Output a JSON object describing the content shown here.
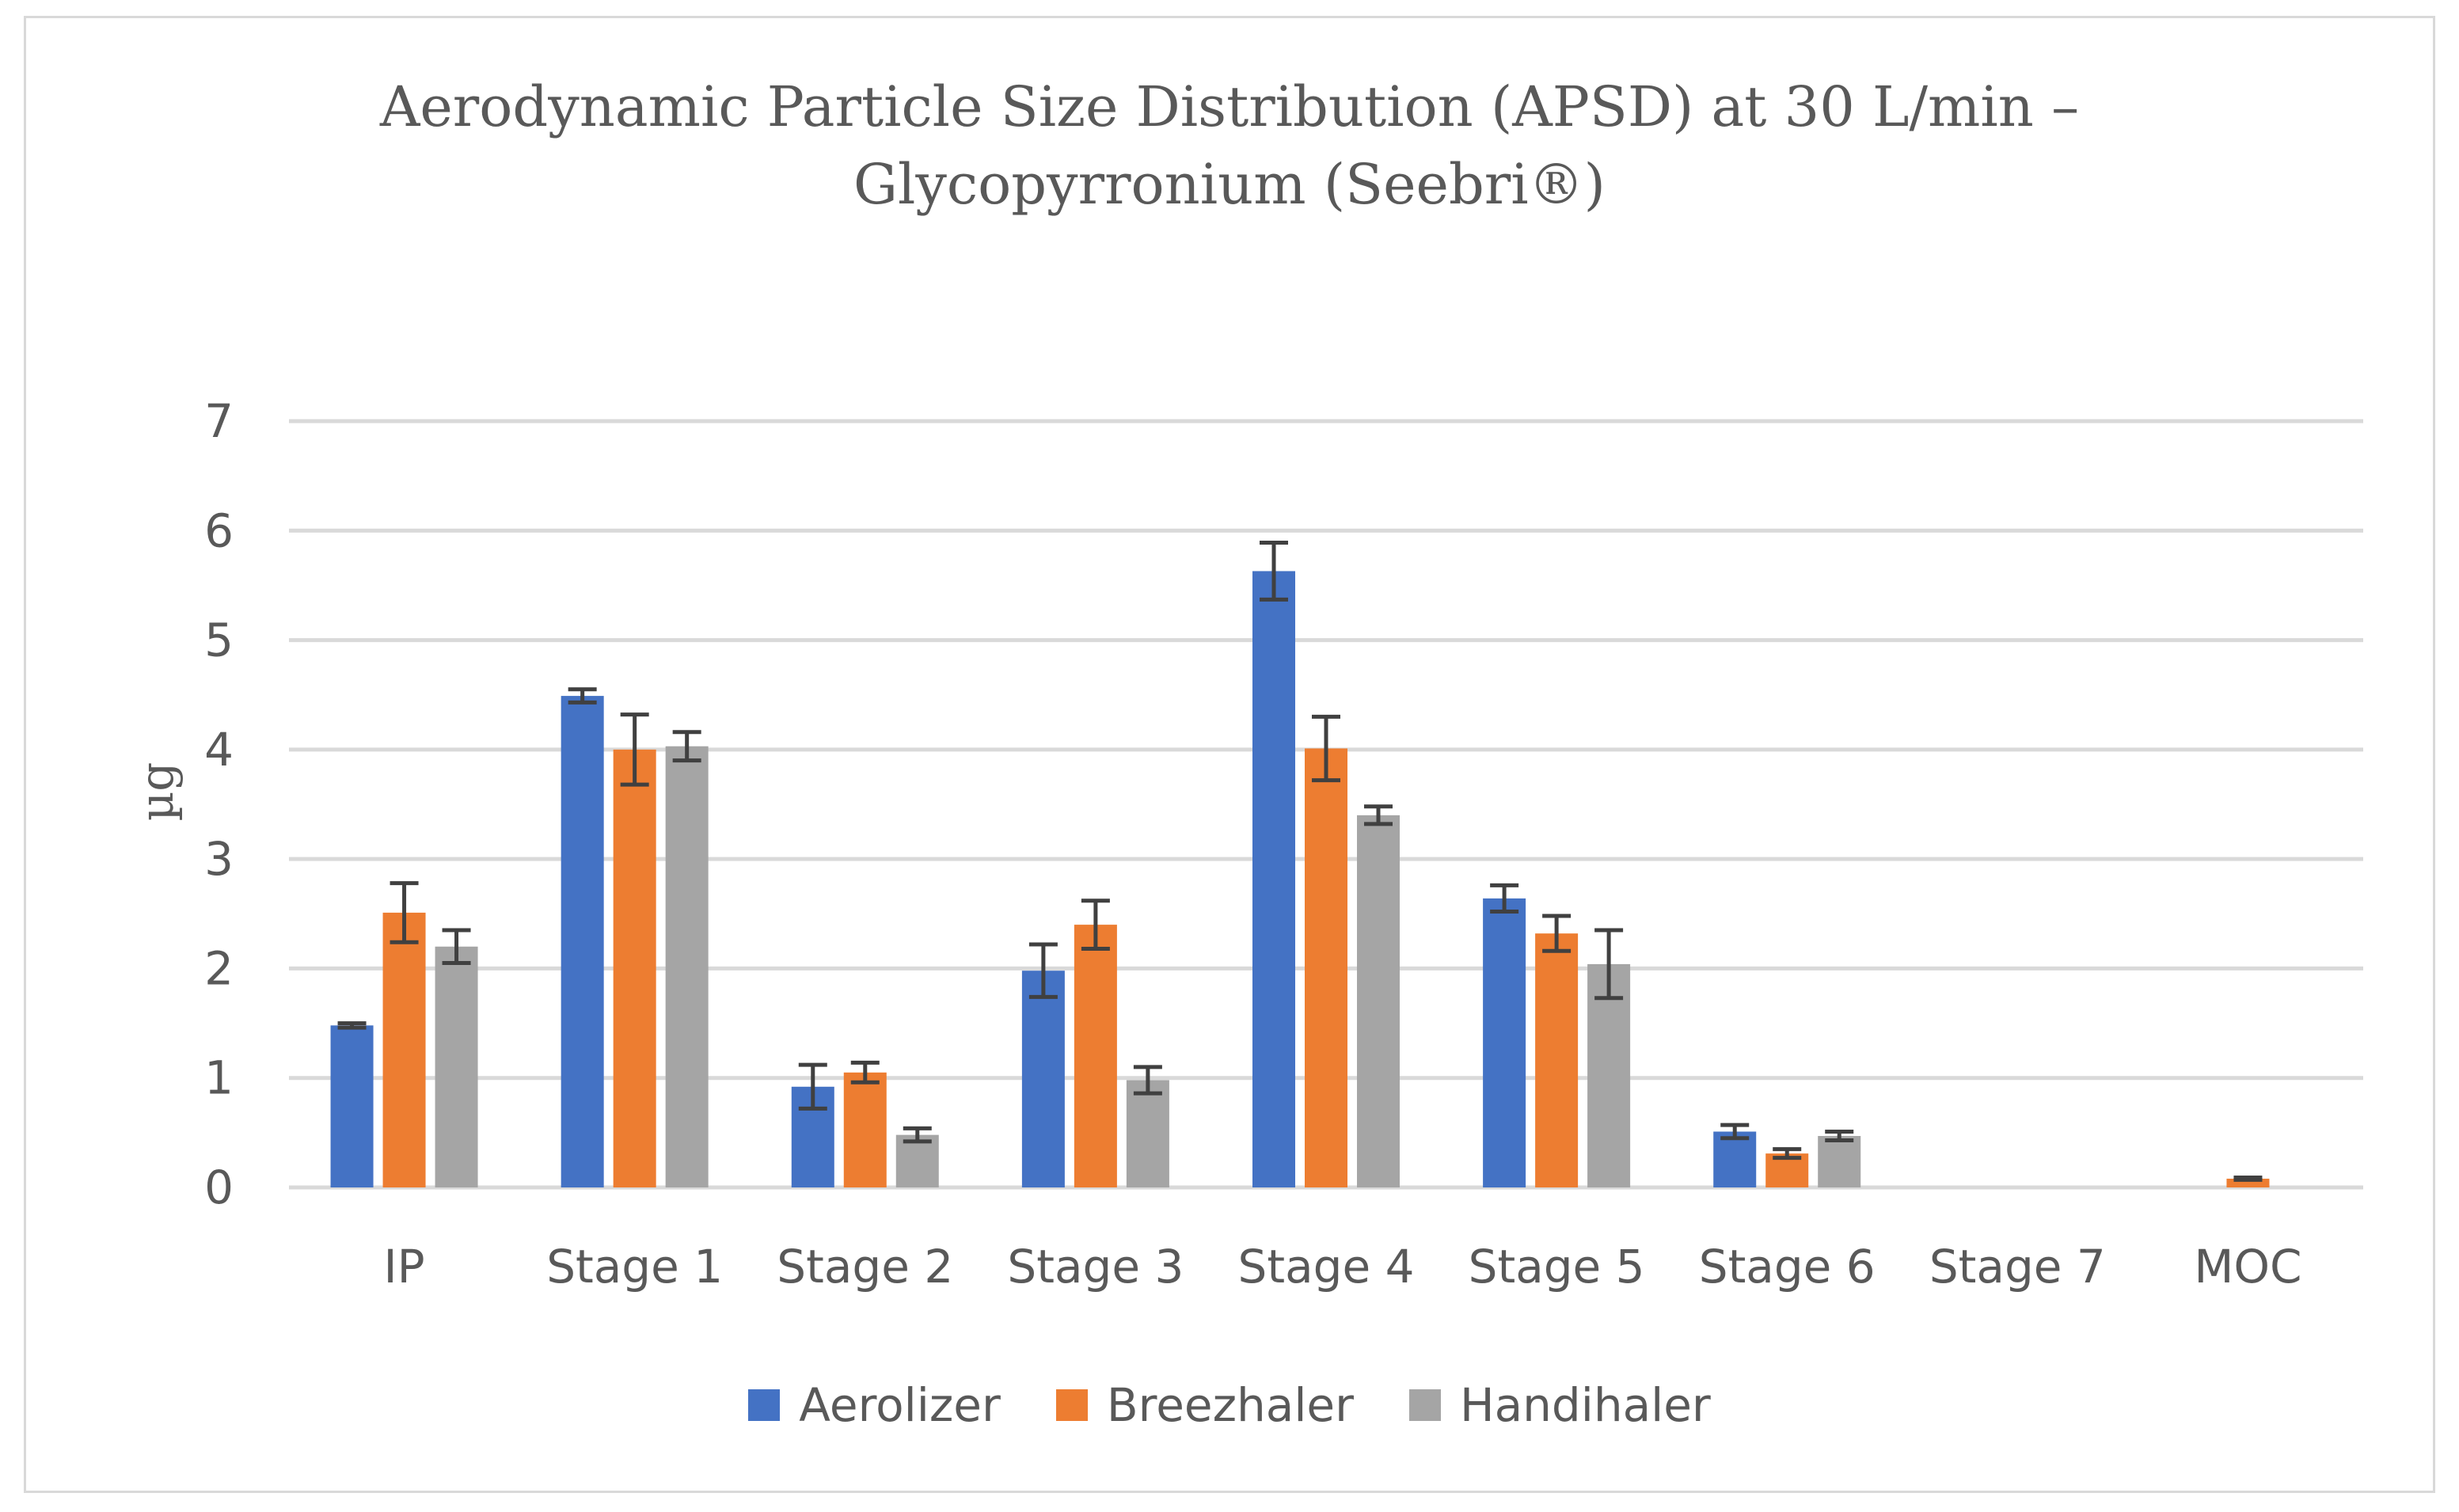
{
  "chart_data": {
    "type": "bar",
    "title": "Aerodynamic Particle Size Distribution (APSD) at 30 L/min –",
    "title_line2": "Glycopyrronium (Seebri®)",
    "xlabel": "",
    "ylabel": "µg",
    "ylim": [
      0,
      7
    ],
    "yticks": [
      "0",
      "1",
      "2",
      "3",
      "4",
      "5",
      "6",
      "7"
    ],
    "grid": true,
    "legend_position": "bottom",
    "categories": [
      "IP",
      "Stage 1",
      "Stage 2",
      "Stage 3",
      "Stage 4",
      "Stage 5",
      "Stage 6",
      "Stage 7",
      "MOC"
    ],
    "series": [
      {
        "name": "Aerolizer",
        "color": "#4472c4",
        "values": [
          1.48,
          4.49,
          0.92,
          1.98,
          5.63,
          2.64,
          0.51,
          0,
          0
        ],
        "errors": [
          0.02,
          0.06,
          0.2,
          0.24,
          0.26,
          0.12,
          0.06,
          0,
          0
        ]
      },
      {
        "name": "Breezhaler",
        "color": "#ed7d31",
        "values": [
          2.51,
          4.0,
          1.05,
          2.4,
          4.01,
          2.32,
          0.31,
          0,
          0.08
        ],
        "errors": [
          0.27,
          0.32,
          0.09,
          0.22,
          0.29,
          0.16,
          0.04,
          0,
          0.01
        ]
      },
      {
        "name": "Handihaler",
        "color": "#a5a5a5",
        "values": [
          2.2,
          4.03,
          0.48,
          0.98,
          3.4,
          2.04,
          0.47,
          0,
          0
        ],
        "errors": [
          0.15,
          0.13,
          0.06,
          0.12,
          0.08,
          0.31,
          0.04,
          0,
          0
        ]
      }
    ]
  }
}
